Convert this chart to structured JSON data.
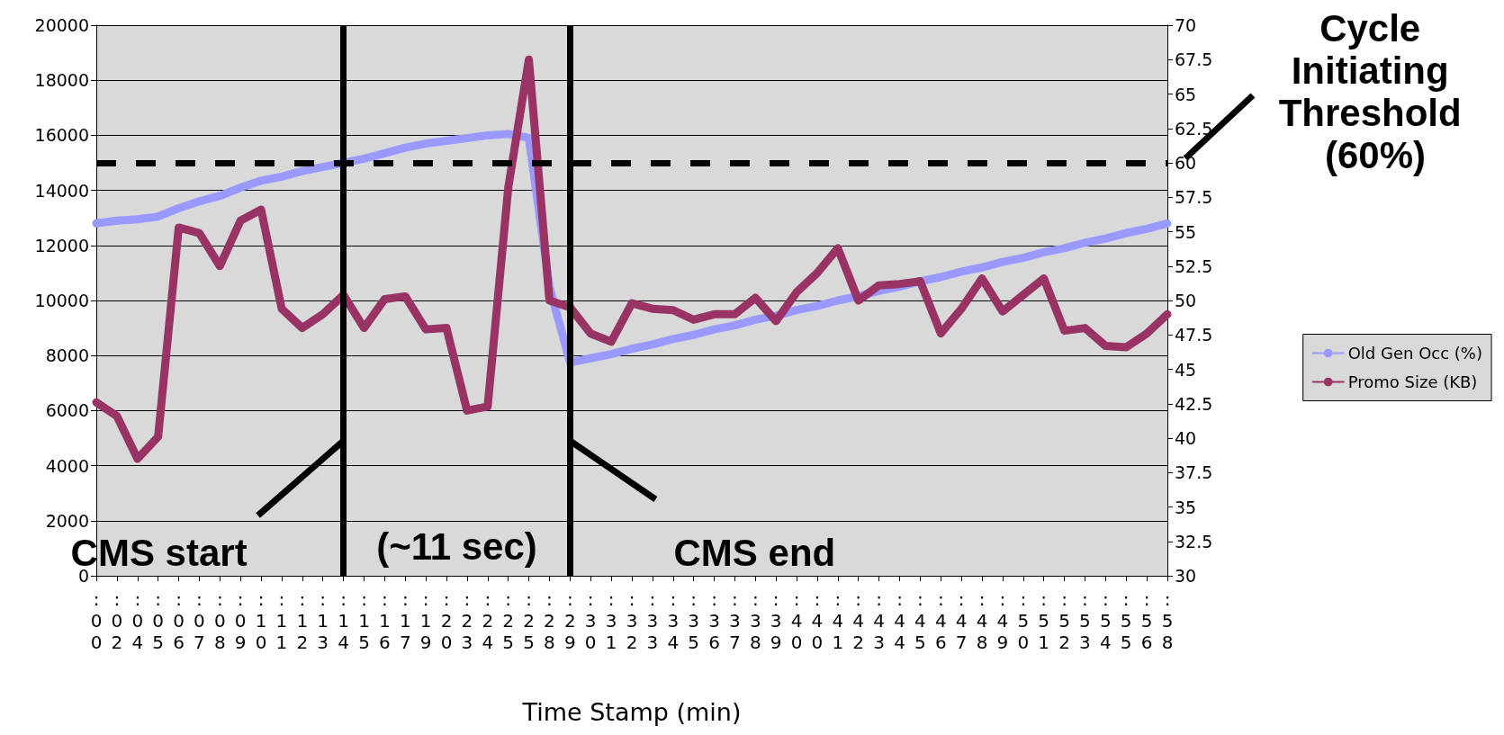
{
  "chart_data": {
    "type": "line",
    "xlabel": "Time Stamp (min)",
    "categories": [
      ":00",
      ":02",
      ":04",
      ":05",
      ":06",
      ":07",
      ":08",
      ":09",
      ":10",
      ":11",
      ":12",
      ":13",
      ":14",
      ":15",
      ":16",
      ":17",
      ":19",
      ":20",
      ":23",
      ":24",
      ":25",
      ":25",
      ":28",
      ":29",
      ":30",
      ":31",
      ":32",
      ":33",
      ":34",
      ":35",
      ":36",
      ":37",
      ":38",
      ":39",
      ":40",
      ":40",
      ":41",
      ":42",
      ":43",
      ":44",
      ":45",
      ":46",
      ":47",
      ":48",
      ":49",
      ":50",
      ":51",
      ":52",
      ":53",
      ":54",
      ":55",
      ":56",
      ":58"
    ],
    "series": [
      {
        "name": "Old Gen Occ (%)",
        "color": "#9999ff",
        "axis": "y2",
        "values": [
          55.6,
          55.8,
          55.9,
          56.1,
          56.7,
          57.2,
          57.6,
          58.2,
          58.7,
          59.0,
          59.4,
          59.7,
          60.0,
          60.3,
          60.7,
          61.1,
          61.4,
          61.6,
          61.8,
          62.0,
          62.1,
          61.8,
          51,
          45.5,
          45.8,
          46.1,
          46.5,
          46.8,
          47.2,
          47.5,
          47.9,
          48.2,
          48.6,
          48.9,
          49.3,
          49.6,
          50.0,
          50.3,
          50.7,
          51.0,
          51.4,
          51.7,
          52.1,
          52.4,
          52.8,
          53.1,
          53.5,
          53.8,
          54.2,
          54.5,
          54.9,
          55.2,
          55.6
        ]
      },
      {
        "name": "Promo Size (KB)",
        "color": "#993366",
        "values": [
          6300,
          5800,
          4250,
          5050,
          12650,
          12450,
          11250,
          12900,
          13300,
          9700,
          9000,
          9500,
          10200,
          9000,
          10050,
          10150,
          8950,
          9000,
          6000,
          6150,
          14100,
          18750,
          10000,
          9750,
          8800,
          8500,
          9900,
          9700,
          9650,
          9300,
          9500,
          9500,
          10100,
          9250,
          10300,
          11000,
          11900,
          10000,
          10550,
          10600,
          10700,
          8800,
          9700,
          10800,
          9600,
          10200,
          10800,
          8900,
          9000,
          8350,
          8300,
          8800,
          9500
        ]
      }
    ],
    "ylim": [
      0,
      20000
    ],
    "yticks": [
      0,
      2000,
      4000,
      6000,
      8000,
      10000,
      12000,
      14000,
      16000,
      18000,
      20000
    ],
    "y2lim": [
      30,
      70
    ],
    "y2ticks": [
      30,
      32.5,
      35,
      37.5,
      40,
      42.5,
      45,
      47.5,
      50,
      52.5,
      55,
      57.5,
      60,
      62.5,
      65,
      67.5,
      70
    ],
    "ref_lines": [
      {
        "axis": "x",
        "value": ":14",
        "label": "CMS start",
        "color": "#000000",
        "line_style": "solid"
      },
      {
        "axis": "x",
        "value": ":29",
        "label": "CMS end",
        "color": "#000000",
        "line_style": "solid"
      },
      {
        "axis": "y2",
        "value": 60,
        "label": "Cycle Initiating Threshold (60%)",
        "color": "#000000",
        "line_style": "dashed"
      }
    ],
    "annotations": [
      "(~11 sec)"
    ],
    "grid": "y",
    "legend": "right",
    "marker": "none",
    "line_style": "solid"
  }
}
